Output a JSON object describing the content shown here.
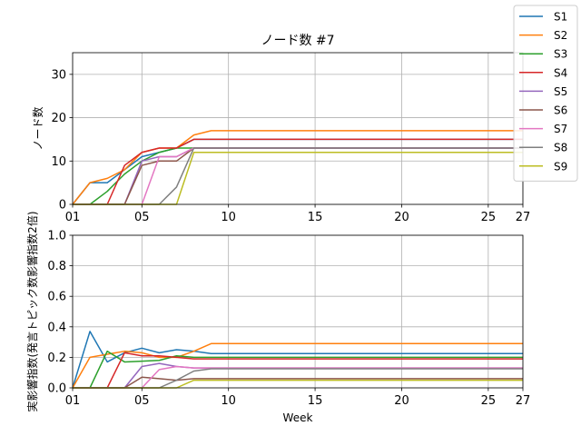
{
  "chart_data": [
    {
      "type": "line",
      "title": "ノード数 #7",
      "xlabel": "",
      "ylabel": "ノード数",
      "xlim": [
        1,
        27
      ],
      "ylim": [
        0,
        35
      ],
      "xticks": [
        1,
        5,
        10,
        15,
        20,
        25,
        27
      ],
      "xtick_labels": [
        "01",
        "05",
        "10",
        "15",
        "20",
        "25",
        "27"
      ],
      "yticks": [
        0,
        10,
        20,
        30
      ],
      "ytick_labels": [
        "0",
        "10",
        "20",
        "30"
      ],
      "grid": true,
      "x": [
        1,
        2,
        3,
        4,
        5,
        6,
        7,
        8,
        9,
        10,
        11,
        12,
        13,
        14,
        15,
        16,
        17,
        18,
        19,
        20,
        21,
        22,
        23,
        24,
        25,
        26,
        27
      ],
      "series": [
        {
          "name": "S1",
          "color": "#1f77b4",
          "values": [
            0,
            5,
            5,
            8,
            11,
            12,
            13,
            15,
            15,
            15,
            15,
            15,
            15,
            15,
            15,
            15,
            15,
            15,
            15,
            15,
            15,
            15,
            15,
            15,
            15,
            15,
            15
          ]
        },
        {
          "name": "S2",
          "color": "#ff7f0e",
          "values": [
            0,
            5,
            6,
            8,
            12,
            13,
            13,
            16,
            17,
            17,
            17,
            17,
            17,
            17,
            17,
            17,
            17,
            17,
            17,
            17,
            17,
            17,
            17,
            17,
            17,
            17,
            17
          ]
        },
        {
          "name": "S3",
          "color": "#2ca02c",
          "values": [
            0,
            0,
            3,
            7,
            10,
            12,
            13,
            13,
            13,
            13,
            13,
            13,
            13,
            13,
            13,
            13,
            13,
            13,
            13,
            13,
            13,
            13,
            13,
            13,
            13,
            13,
            13
          ]
        },
        {
          "name": "S4",
          "color": "#d62728",
          "values": [
            0,
            0,
            0,
            9,
            12,
            13,
            13,
            15,
            15,
            15,
            15,
            15,
            15,
            15,
            15,
            15,
            15,
            15,
            15,
            15,
            15,
            15,
            15,
            15,
            15,
            15,
            15
          ]
        },
        {
          "name": "S5",
          "color": "#9467bd",
          "values": [
            0,
            0,
            0,
            0,
            10,
            11,
            11,
            13,
            13,
            13,
            13,
            13,
            13,
            13,
            13,
            13,
            13,
            13,
            13,
            13,
            13,
            13,
            13,
            13,
            13,
            13,
            13
          ]
        },
        {
          "name": "S6",
          "color": "#8c564b",
          "values": [
            0,
            0,
            0,
            0,
            9,
            10,
            10,
            13,
            13,
            13,
            13,
            13,
            13,
            13,
            13,
            13,
            13,
            13,
            13,
            13,
            13,
            13,
            13,
            13,
            13,
            13,
            13
          ]
        },
        {
          "name": "S7",
          "color": "#e377c2",
          "values": [
            0,
            0,
            0,
            0,
            0,
            11,
            11,
            13,
            13,
            13,
            13,
            13,
            13,
            13,
            13,
            13,
            13,
            13,
            13,
            13,
            13,
            13,
            13,
            13,
            13,
            13,
            13
          ]
        },
        {
          "name": "S8",
          "color": "#7f7f7f",
          "values": [
            0,
            0,
            0,
            0,
            0,
            0,
            4,
            13,
            13,
            13,
            13,
            13,
            13,
            13,
            13,
            13,
            13,
            13,
            13,
            13,
            13,
            13,
            13,
            13,
            13,
            13,
            13
          ]
        },
        {
          "name": "S9",
          "color": "#bcbd22",
          "values": [
            0,
            0,
            0,
            0,
            0,
            0,
            0,
            12,
            12,
            12,
            12,
            12,
            12,
            12,
            12,
            12,
            12,
            12,
            12,
            12,
            12,
            12,
            12,
            12,
            12,
            12,
            12
          ]
        }
      ]
    },
    {
      "type": "line",
      "title": "",
      "xlabel": "Week",
      "ylabel": "実影響指数(発言トピック数影響指数2倍)",
      "xlim": [
        1,
        27
      ],
      "ylim": [
        0,
        1.0
      ],
      "xticks": [
        1,
        5,
        10,
        15,
        20,
        25,
        27
      ],
      "xtick_labels": [
        "01",
        "05",
        "10",
        "15",
        "20",
        "25",
        "27"
      ],
      "yticks": [
        0,
        0.2,
        0.4,
        0.6,
        0.8,
        1.0
      ],
      "ytick_labels": [
        "0.0",
        "0.2",
        "0.4",
        "0.6",
        "0.8",
        "1.0"
      ],
      "grid": true,
      "x": [
        1,
        2,
        3,
        4,
        5,
        6,
        7,
        8,
        9,
        10,
        11,
        12,
        13,
        14,
        15,
        16,
        17,
        18,
        19,
        20,
        21,
        22,
        23,
        24,
        25,
        26,
        27
      ],
      "series": [
        {
          "name": "S1",
          "color": "#1f77b4",
          "values": [
            0,
            0.37,
            0.17,
            0.23,
            0.26,
            0.23,
            0.25,
            0.24,
            0.225,
            0.225,
            0.225,
            0.225,
            0.225,
            0.225,
            0.225,
            0.225,
            0.225,
            0.225,
            0.225,
            0.225,
            0.225,
            0.225,
            0.225,
            0.225,
            0.225,
            0.225,
            0.225
          ]
        },
        {
          "name": "S2",
          "color": "#ff7f0e",
          "values": [
            0,
            0.2,
            0.22,
            0.24,
            0.23,
            0.2,
            0.2,
            0.24,
            0.29,
            0.29,
            0.29,
            0.29,
            0.29,
            0.29,
            0.29,
            0.29,
            0.29,
            0.29,
            0.29,
            0.29,
            0.29,
            0.29,
            0.29,
            0.29,
            0.29,
            0.29,
            0.29
          ]
        },
        {
          "name": "S3",
          "color": "#2ca02c",
          "values": [
            0,
            0,
            0.24,
            0.17,
            0.175,
            0.18,
            0.21,
            0.2,
            0.2,
            0.2,
            0.2,
            0.2,
            0.2,
            0.2,
            0.2,
            0.2,
            0.2,
            0.2,
            0.2,
            0.2,
            0.2,
            0.2,
            0.2,
            0.2,
            0.2,
            0.2,
            0.2
          ]
        },
        {
          "name": "S4",
          "color": "#d62728",
          "values": [
            0,
            0,
            0,
            0.23,
            0.21,
            0.21,
            0.2,
            0.19,
            0.19,
            0.19,
            0.19,
            0.19,
            0.19,
            0.19,
            0.19,
            0.19,
            0.19,
            0.19,
            0.19,
            0.19,
            0.19,
            0.19,
            0.19,
            0.19,
            0.19,
            0.19,
            0.19
          ]
        },
        {
          "name": "S5",
          "color": "#9467bd",
          "values": [
            0,
            0,
            0,
            0,
            0.14,
            0.16,
            0.14,
            0.13,
            0.13,
            0.13,
            0.13,
            0.13,
            0.13,
            0.13,
            0.13,
            0.13,
            0.13,
            0.13,
            0.13,
            0.13,
            0.13,
            0.13,
            0.13,
            0.13,
            0.13,
            0.13,
            0.13
          ]
        },
        {
          "name": "S6",
          "color": "#8c564b",
          "values": [
            0,
            0,
            0,
            0,
            0.07,
            0.06,
            0.05,
            0.06,
            0.06,
            0.06,
            0.06,
            0.06,
            0.06,
            0.06,
            0.06,
            0.06,
            0.06,
            0.06,
            0.06,
            0.06,
            0.06,
            0.06,
            0.06,
            0.06,
            0.06,
            0.06,
            0.06
          ]
        },
        {
          "name": "S7",
          "color": "#e377c2",
          "values": [
            0,
            0,
            0,
            0,
            0,
            0.12,
            0.14,
            0.13,
            0.13,
            0.13,
            0.13,
            0.13,
            0.13,
            0.13,
            0.13,
            0.13,
            0.13,
            0.13,
            0.13,
            0.13,
            0.13,
            0.13,
            0.13,
            0.13,
            0.13,
            0.13,
            0.13
          ]
        },
        {
          "name": "S8",
          "color": "#7f7f7f",
          "values": [
            0,
            0,
            0,
            0,
            0,
            0,
            0.05,
            0.11,
            0.125,
            0.125,
            0.125,
            0.125,
            0.125,
            0.125,
            0.125,
            0.125,
            0.125,
            0.125,
            0.125,
            0.125,
            0.125,
            0.125,
            0.125,
            0.125,
            0.125,
            0.125,
            0.125
          ]
        },
        {
          "name": "S9",
          "color": "#bcbd22",
          "values": [
            0,
            0,
            0,
            0,
            0,
            0,
            0,
            0.05,
            0.05,
            0.05,
            0.05,
            0.05,
            0.05,
            0.05,
            0.05,
            0.05,
            0.05,
            0.05,
            0.05,
            0.05,
            0.05,
            0.05,
            0.05,
            0.05,
            0.05,
            0.05,
            0.05
          ]
        }
      ]
    }
  ],
  "legend": {
    "placement": "top-right",
    "entries": [
      "S1",
      "S2",
      "S3",
      "S4",
      "S5",
      "S6",
      "S7",
      "S8",
      "S9"
    ]
  }
}
